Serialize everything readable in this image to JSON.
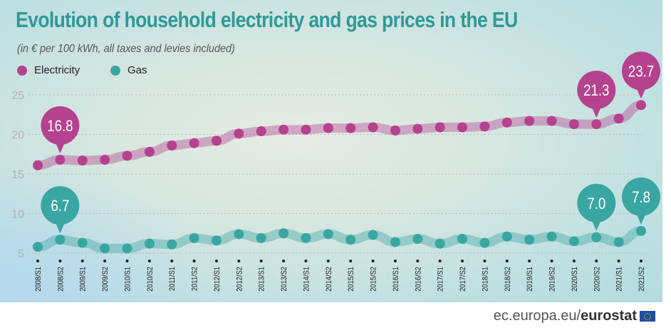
{
  "chart_data": {
    "type": "line",
    "title": "Evolution of household electricity and gas prices in the EU",
    "subtitle": "(in € per 100 kWh, all taxes and levies included)",
    "xlabel": "",
    "ylabel": "",
    "ylim": [
      5,
      25
    ],
    "yticks": [
      "5",
      "10",
      "15",
      "20",
      "25"
    ],
    "grid": true,
    "legend_position": "top-left",
    "categories": [
      "2008/S1",
      "2008/S2",
      "2009/S1",
      "2009/S2",
      "2010/S1",
      "2010/S2",
      "2011/S1",
      "2011/S2",
      "2012/S1",
      "2012/S2",
      "2013/S1",
      "2013/S2",
      "2014/S1",
      "2014/S2",
      "2015/S1",
      "2015/S2",
      "2016/S1",
      "2016/S2",
      "2017/S1",
      "2017/S2",
      "2018/S1",
      "2018/S2",
      "2019/S1",
      "2019/S2",
      "2020/S1",
      "2020/S2",
      "2021/S1",
      "2021/S2"
    ],
    "series": [
      {
        "name": "Electricity",
        "color": "#b5428e",
        "values": [
          16.1,
          16.8,
          16.7,
          16.8,
          17.3,
          17.8,
          18.6,
          18.9,
          19.2,
          20.1,
          20.4,
          20.6,
          20.6,
          20.8,
          20.8,
          20.9,
          20.5,
          20.7,
          20.9,
          20.9,
          21.0,
          21.5,
          21.7,
          21.7,
          21.3,
          21.3,
          22.0,
          23.7
        ],
        "callouts": [
          {
            "category": "2008/S2",
            "label": "16.8"
          },
          {
            "category": "2020/S2",
            "label": "21.3"
          },
          {
            "category": "2021/S2",
            "label": "23.7"
          }
        ]
      },
      {
        "name": "Gas",
        "color": "#3aa6a2",
        "values": [
          5.8,
          6.7,
          6.3,
          5.6,
          5.6,
          6.2,
          6.1,
          6.9,
          6.6,
          7.4,
          6.9,
          7.5,
          6.9,
          7.4,
          6.7,
          7.3,
          6.4,
          6.8,
          6.2,
          6.8,
          6.3,
          7.1,
          6.7,
          7.1,
          6.5,
          7.0,
          6.4,
          7.8
        ],
        "callouts": [
          {
            "category": "2008/S2",
            "label": "6.7"
          },
          {
            "category": "2020/S2",
            "label": "7.0"
          },
          {
            "category": "2021/S2",
            "label": "7.8"
          }
        ]
      }
    ]
  },
  "footer": {
    "domain": "ec.europa.eu/",
    "brand": "eurostat"
  }
}
